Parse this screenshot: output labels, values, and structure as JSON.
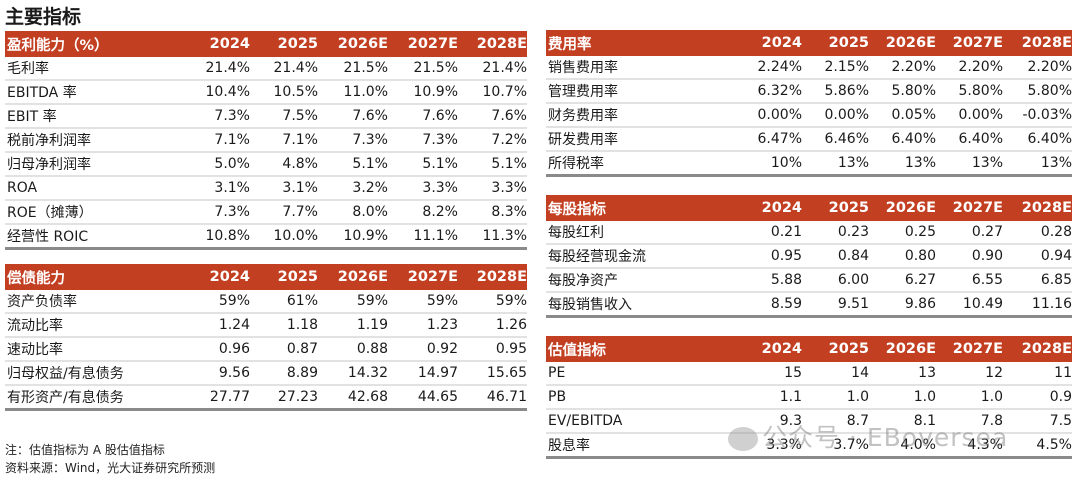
{
  "title": "主要指标",
  "years": [
    "2024",
    "2025",
    "2026E",
    "2027E",
    "2028E"
  ],
  "tables": {
    "profitability": {
      "header": "盈利能力（%）",
      "rows": [
        [
          "毛利率",
          "21.4%",
          "21.4%",
          "21.5%",
          "21.5%",
          "21.4%"
        ],
        [
          "EBITDA 率",
          "10.4%",
          "10.5%",
          "11.0%",
          "10.9%",
          "10.7%"
        ],
        [
          "EBIT 率",
          "7.3%",
          "7.5%",
          "7.6%",
          "7.6%",
          "7.6%"
        ],
        [
          "税前净利润率",
          "7.1%",
          "7.1%",
          "7.3%",
          "7.3%",
          "7.2%"
        ],
        [
          "归母净利润率",
          "5.0%",
          "4.8%",
          "5.1%",
          "5.1%",
          "5.1%"
        ],
        [
          "ROA",
          "3.1%",
          "3.1%",
          "3.2%",
          "3.3%",
          "3.3%"
        ],
        [
          "ROE（摊薄）",
          "7.3%",
          "7.7%",
          "8.0%",
          "8.2%",
          "8.3%"
        ],
        [
          "经营性 ROIC",
          "10.8%",
          "10.0%",
          "10.9%",
          "11.1%",
          "11.3%"
        ]
      ]
    },
    "solvency": {
      "header": "偿债能力",
      "rows": [
        [
          "资产负债率",
          "59%",
          "61%",
          "59%",
          "59%",
          "59%"
        ],
        [
          "流动比率",
          "1.24",
          "1.18",
          "1.19",
          "1.23",
          "1.26"
        ],
        [
          "速动比率",
          "0.96",
          "0.87",
          "0.88",
          "0.92",
          "0.95"
        ],
        [
          "归母权益/有息债务",
          "9.56",
          "8.89",
          "14.32",
          "14.97",
          "15.65"
        ],
        [
          "有形资产/有息债务",
          "27.77",
          "27.23",
          "42.68",
          "44.65",
          "46.71"
        ]
      ]
    },
    "expense": {
      "header": "费用率",
      "rows": [
        [
          "销售费用率",
          "2.24%",
          "2.15%",
          "2.20%",
          "2.20%",
          "2.20%"
        ],
        [
          "管理费用率",
          "6.32%",
          "5.86%",
          "5.80%",
          "5.80%",
          "5.80%"
        ],
        [
          "财务费用率",
          "0.00%",
          "0.00%",
          "0.05%",
          "0.00%",
          "-0.03%"
        ],
        [
          "研发费用率",
          "6.47%",
          "6.46%",
          "6.40%",
          "6.40%",
          "6.40%"
        ],
        [
          "所得税率",
          "10%",
          "13%",
          "13%",
          "13%",
          "13%"
        ]
      ]
    },
    "per_share": {
      "header": "每股指标",
      "rows": [
        [
          "每股红利",
          "0.21",
          "0.23",
          "0.25",
          "0.27",
          "0.28"
        ],
        [
          "每股经营现金流",
          "0.95",
          "0.84",
          "0.80",
          "0.90",
          "0.94"
        ],
        [
          "每股净资产",
          "5.88",
          "6.00",
          "6.27",
          "6.55",
          "6.85"
        ],
        [
          "每股销售收入",
          "8.59",
          "9.51",
          "9.86",
          "10.49",
          "11.16"
        ]
      ]
    },
    "valuation": {
      "header": "估值指标",
      "rows": [
        [
          "PE",
          "15",
          "14",
          "13",
          "12",
          "11"
        ],
        [
          "PB",
          "1.1",
          "1.0",
          "1.0",
          "1.0",
          "0.9"
        ],
        [
          "EV/EBITDA",
          "9.3",
          "8.7",
          "8.1",
          "7.8",
          "7.5"
        ],
        [
          "股息率",
          "3.3%",
          "3.7%",
          "4.0%",
          "4.3%",
          "4.5%"
        ]
      ]
    }
  },
  "notes": [
    "注：估值指标为 A 股估值指标",
    "资料来源：Wind，光大证券研究所预测"
  ],
  "watermark": "公众号 · EBoversea",
  "colors": {
    "header_bg": "#c33f22"
  }
}
